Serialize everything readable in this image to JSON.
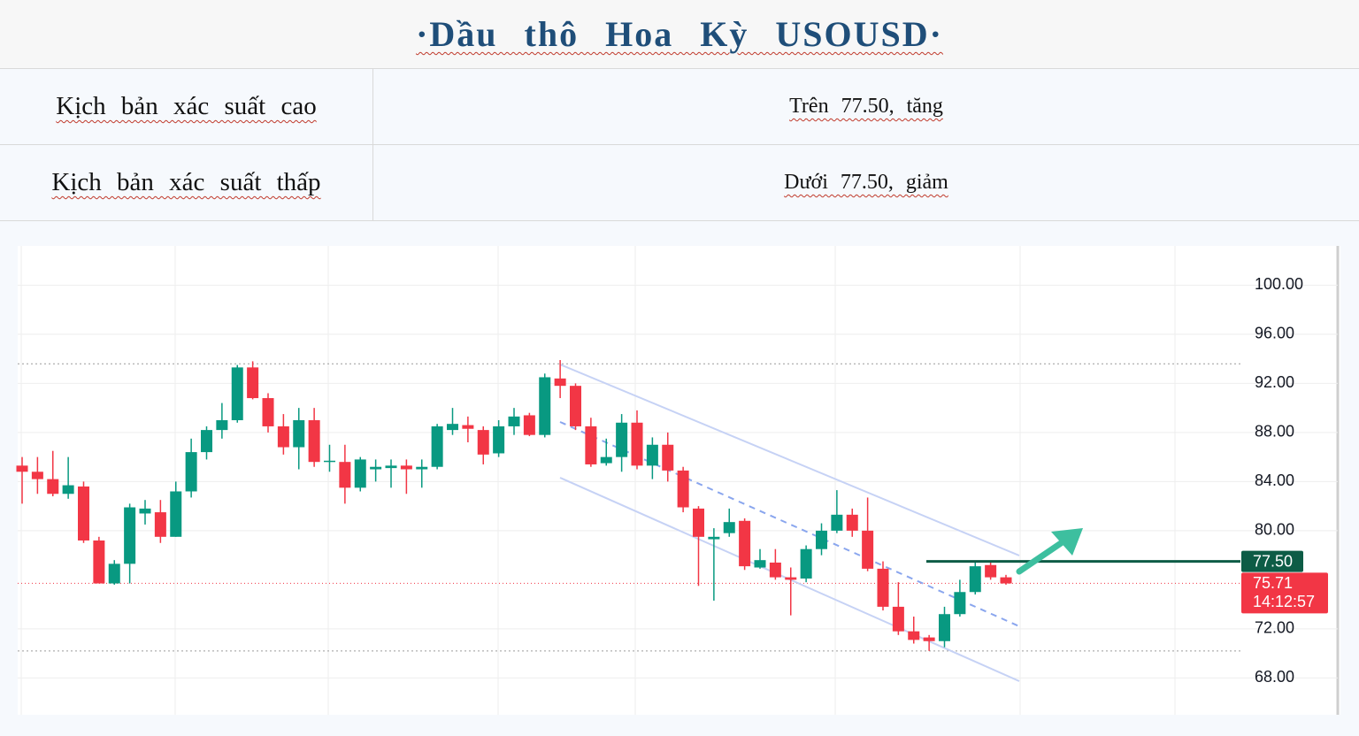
{
  "header": {
    "title": "·Dầu thô Hoa Kỳ USOUSD·"
  },
  "table": {
    "rows": [
      [
        "Kịch bản xác suất cao",
        "Trên 77.50, tăng"
      ],
      [
        "Kịch bản xác suất thấp",
        "Dưới 77.50, giảm"
      ]
    ]
  },
  "chart_data": {
    "type": "candlestick",
    "up_color": "#089981",
    "down_color": "#f23645",
    "open": [
      85.3,
      84.8,
      84.2,
      83.0,
      83.6,
      79.2,
      75.7,
      77.3,
      81.4,
      81.5,
      79.5,
      83.2,
      86.4,
      88.2,
      89.0,
      93.3,
      90.8,
      88.5,
      86.8,
      89.0,
      85.6,
      85.6,
      83.5,
      85.0,
      85.1,
      85.3,
      85.0,
      85.2,
      88.2,
      88.6,
      88.2,
      86.3,
      88.5,
      89.4,
      87.8,
      92.4,
      91.8,
      88.5,
      85.5,
      86.0,
      88.8,
      85.3,
      87.0,
      84.9,
      81.8,
      79.3,
      79.8,
      80.8,
      77.0,
      77.4,
      76.2,
      76.1,
      78.5,
      80.0,
      81.3,
      80.0,
      76.9,
      73.8,
      71.8,
      71.3,
      71.0,
      73.2,
      75.0,
      77.2,
      76.2
    ],
    "high": [
      86.0,
      86.0,
      86.5,
      86.0,
      84.0,
      79.5,
      77.6,
      82.2,
      82.5,
      82.5,
      84.0,
      87.5,
      88.5,
      90.4,
      93.5,
      93.8,
      91.2,
      89.5,
      90.0,
      90.0,
      87.0,
      87.0,
      86.0,
      85.8,
      85.8,
      85.8,
      85.8,
      88.7,
      90.0,
      89.3,
      88.5,
      89.0,
      90.0,
      89.6,
      92.8,
      93.9,
      92.0,
      89.2,
      87.5,
      89.5,
      89.8,
      87.6,
      88.0,
      85.2,
      82.0,
      80.2,
      81.8,
      81.0,
      78.5,
      78.5,
      77.0,
      78.8,
      80.6,
      83.3,
      81.8,
      82.7,
      77.5,
      75.8,
      73.0,
      71.5,
      73.8,
      76.0,
      77.5,
      77.5,
      76.4
    ],
    "low": [
      82.2,
      83.0,
      82.8,
      82.6,
      79.0,
      75.7,
      75.6,
      75.7,
      80.5,
      79.0,
      79.5,
      82.7,
      85.8,
      87.5,
      88.8,
      90.7,
      88.0,
      86.2,
      85.0,
      85.2,
      84.8,
      82.2,
      83.2,
      84.0,
      83.5,
      83.0,
      83.5,
      85.0,
      87.8,
      87.2,
      85.4,
      86.0,
      87.8,
      87.7,
      87.6,
      90.8,
      88.2,
      85.2,
      85.3,
      84.8,
      85.0,
      84.2,
      84.0,
      81.5,
      75.5,
      74.3,
      79.5,
      76.8,
      76.9,
      76.0,
      73.1,
      75.8,
      78.0,
      79.8,
      79.5,
      76.7,
      73.5,
      71.5,
      70.8,
      70.2,
      70.5,
      73.0,
      74.8,
      76.0,
      75.6
    ],
    "close": [
      84.8,
      84.2,
      83.0,
      83.7,
      79.2,
      75.7,
      77.3,
      81.9,
      81.8,
      79.5,
      83.2,
      86.4,
      88.2,
      89.0,
      93.3,
      90.8,
      88.5,
      86.8,
      89.0,
      85.6,
      85.7,
      83.5,
      85.8,
      85.2,
      85.3,
      85.0,
      85.2,
      88.5,
      88.7,
      88.3,
      86.2,
      88.5,
      89.3,
      87.8,
      92.5,
      91.8,
      88.5,
      85.4,
      86.0,
      88.8,
      85.3,
      87.0,
      84.9,
      81.9,
      79.5,
      79.5,
      80.7,
      77.1,
      77.6,
      76.2,
      76.0,
      78.5,
      80.0,
      81.3,
      80.0,
      76.9,
      73.8,
      71.8,
      71.1,
      71.0,
      73.2,
      75.0,
      77.1,
      76.2,
      75.7
    ],
    "reference_lines": [
      93.6,
      70.2
    ],
    "level": {
      "value": 77.5,
      "label": "77.50"
    },
    "last": {
      "value": 75.71,
      "label": "75.71"
    },
    "countdown": "14:12:57",
    "ylim": [
      65.0,
      103.2
    ],
    "yticks": [
      {
        "value": 68,
        "label": "68.00"
      },
      {
        "value": 72,
        "label": "72.00"
      },
      {
        "value": 80,
        "label": "80.00"
      },
      {
        "value": 84,
        "label": "84.00"
      },
      {
        "value": 88,
        "label": "88.00"
      },
      {
        "value": 92,
        "label": "92.00"
      },
      {
        "value": 96,
        "label": "96.00"
      },
      {
        "value": 100,
        "label": "100.00"
      }
    ],
    "grid": true
  }
}
